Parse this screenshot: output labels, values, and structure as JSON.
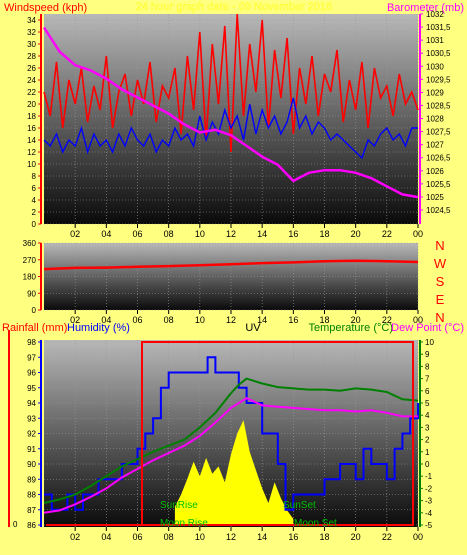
{
  "colors": {
    "background": "#ffff80",
    "wind": "#ff0000",
    "gust": "#0000ff",
    "barometer": "#ff00ff",
    "rain_axis": "#ff0000",
    "humidity_axis": "#0000ff",
    "temperature": "#008000",
    "dewpoint": "#ff00ff",
    "uv": "#ffff00",
    "sun": "#00c000"
  },
  "header": {
    "wind_label": "Windspeed (kph)",
    "title": "24 hour graph date - 09 November 2016",
    "baro_label": "Barometer (mb)"
  },
  "labels": {
    "rain": "Rainfall (mm)",
    "humidity": "Humidity (%)",
    "uv": "UV",
    "temperature": "Temperature (°C)",
    "dewpoint": "Dew Point (°C)",
    "sunrise": "SunRise",
    "sunset": "SunSet",
    "moonrise": "Moon Rise",
    "moonset": "Moon Set"
  },
  "chart_data": [
    {
      "type": "line",
      "x_ticks": [
        "02",
        "04",
        "06",
        "08",
        "10",
        "12",
        "14",
        "16",
        "18",
        "20",
        "22",
        "00"
      ],
      "y_left": {
        "label": "Windspeed (kph)",
        "ticks": [
          0,
          2,
          4,
          6,
          8,
          10,
          12,
          14,
          16,
          18,
          20,
          22,
          24,
          26,
          28,
          30,
          32,
          34
        ],
        "range": [
          0,
          35
        ]
      },
      "y_right": {
        "label": "Barometer (mb)",
        "ticks": [
          "1024,5",
          "1025",
          "1025,5",
          "1026",
          "1026,5",
          "1027",
          "1027,5",
          "1028",
          "1028,5",
          "1029",
          "1029,5",
          "1030",
          "1030,5",
          "1031",
          "1031,5",
          "1032"
        ],
        "range": [
          1024.2,
          1032
        ]
      },
      "series": [
        {
          "name": "Windspeed (kph)",
          "axis": "left",
          "style": "wind",
          "x": [
            0,
            0.4,
            0.8,
            1.2,
            1.6,
            2,
            2.4,
            2.8,
            3.2,
            3.6,
            4,
            4.4,
            4.8,
            5.2,
            5.6,
            6,
            6.4,
            6.8,
            7.2,
            7.6,
            8,
            8.4,
            8.8,
            9.2,
            9.6,
            10,
            10.4,
            10.8,
            11.2,
            11.6,
            12,
            12.4,
            12.8,
            13.2,
            13.6,
            14,
            14.4,
            14.8,
            15.2,
            15.6,
            16,
            16.4,
            16.8,
            17.2,
            17.6,
            18,
            18.4,
            18.8,
            19.2,
            19.6,
            20,
            20.4,
            20.8,
            21.2,
            21.6,
            22,
            22.4,
            22.8,
            23.2,
            23.6,
            24
          ],
          "values": [
            22,
            18,
            27,
            16,
            24,
            20,
            26,
            17,
            23,
            19,
            28,
            16,
            22,
            25,
            18,
            24,
            20,
            27,
            17,
            23,
            21,
            26,
            15,
            28,
            19,
            32,
            14,
            30,
            20,
            33,
            12,
            35,
            18,
            30,
            22,
            34,
            16,
            29,
            21,
            31,
            15,
            26,
            20,
            28,
            18,
            25,
            22,
            29,
            17,
            24,
            19,
            27,
            16,
            26,
            21,
            23,
            18,
            25,
            20,
            22,
            19
          ]
        },
        {
          "name": "Gust",
          "axis": "left",
          "style": "gust",
          "x": [
            0,
            0.4,
            0.8,
            1.2,
            1.6,
            2,
            2.4,
            2.8,
            3.2,
            3.6,
            4,
            4.4,
            4.8,
            5.2,
            5.6,
            6,
            6.4,
            6.8,
            7.2,
            7.6,
            8,
            8.4,
            8.8,
            9.2,
            9.6,
            10,
            10.4,
            10.8,
            11.2,
            11.6,
            12,
            12.4,
            12.8,
            13.2,
            13.6,
            14,
            14.4,
            14.8,
            15.2,
            15.6,
            16,
            16.4,
            16.8,
            17.2,
            17.6,
            18,
            18.4,
            18.8,
            19.2,
            19.6,
            20,
            20.4,
            20.8,
            21.2,
            21.6,
            22,
            22.4,
            22.8,
            23.2,
            23.6,
            24
          ],
          "values": [
            14,
            13,
            15,
            12,
            14,
            13,
            16,
            12,
            15,
            13,
            14,
            12,
            15,
            13,
            16,
            14,
            13,
            15,
            12,
            14,
            13,
            16,
            14,
            15,
            13,
            18,
            14,
            17,
            15,
            19,
            16,
            18,
            14,
            20,
            15,
            19,
            16,
            18,
            15,
            17,
            21,
            16,
            18,
            15,
            17,
            16,
            14,
            15,
            14,
            13,
            12,
            11,
            14,
            13,
            15,
            16,
            14,
            15,
            13,
            16,
            16
          ]
        },
        {
          "name": "Barometer (mb)",
          "axis": "right",
          "style": "baro",
          "x": [
            0,
            1,
            2,
            3,
            4,
            5,
            6,
            7,
            8,
            9,
            10,
            11,
            12,
            13,
            14,
            15,
            16,
            17,
            18,
            19,
            20,
            21,
            22,
            23,
            24
          ],
          "values": [
            1031.5,
            1030.6,
            1030.1,
            1029.9,
            1029.6,
            1029.2,
            1028.9,
            1028.6,
            1028.3,
            1027.9,
            1027.6,
            1027.7,
            1027.5,
            1027.1,
            1026.7,
            1026.4,
            1025.8,
            1026.1,
            1026.2,
            1026.2,
            1026.1,
            1025.9,
            1025.6,
            1025.3,
            1025.2
          ]
        }
      ]
    },
    {
      "type": "line",
      "x_ticks": [
        "02",
        "04",
        "06",
        "08",
        "10",
        "12",
        "14",
        "16",
        "18",
        "20",
        "22",
        "00"
      ],
      "y_left": {
        "label": "",
        "ticks": [
          0,
          90,
          180,
          270,
          360
        ],
        "range": [
          0,
          360
        ]
      },
      "y_right": {
        "label": "",
        "ticks": [
          "N",
          "W",
          "S",
          "E",
          "N"
        ]
      },
      "series": [
        {
          "name": "Wind direction",
          "axis": "left",
          "style": "wind",
          "x": [
            0,
            2,
            4,
            6,
            8,
            10,
            12,
            14,
            16,
            18,
            20,
            22,
            24
          ],
          "values": [
            220,
            226,
            228,
            232,
            236,
            240,
            246,
            252,
            256,
            262,
            265,
            262,
            258
          ]
        }
      ]
    },
    {
      "type": "line",
      "x_ticks": [
        "02",
        "04",
        "06",
        "08",
        "10",
        "12",
        "14",
        "16",
        "18",
        "20",
        "22",
        "00"
      ],
      "y_left": {
        "label": "Rainfall (mm)",
        "ticks": [
          0
        ]
      },
      "y_humidity": {
        "label": "Humidity (%)",
        "ticks": [
          86,
          87,
          88,
          89,
          90,
          91,
          92,
          93,
          94,
          95,
          96,
          97,
          98
        ],
        "range": [
          86,
          98
        ]
      },
      "y_right": {
        "label": "Temperature (°C) / Dew Point (°C)",
        "ticks": [
          -5,
          -4,
          -3,
          -2,
          -1,
          0,
          1,
          2,
          3,
          4,
          5,
          6,
          7,
          8,
          9,
          10
        ],
        "range": [
          -5,
          10
        ]
      },
      "series": [
        {
          "name": "Humidity (%)",
          "axis": "humidity",
          "style": "humidity",
          "x": [
            0,
            0.5,
            1,
            1.5,
            2,
            2.5,
            3,
            3.5,
            4,
            5,
            6,
            6.5,
            7,
            7.5,
            8,
            9,
            10,
            10.5,
            11,
            12,
            12.5,
            13,
            14,
            15,
            15.5,
            16,
            17,
            18,
            19,
            20,
            20.5,
            21,
            22,
            22.5,
            23,
            23.5,
            24
          ],
          "values": [
            88,
            87,
            87,
            88,
            87,
            88,
            88,
            89,
            89,
            90,
            91,
            92,
            93,
            95,
            96,
            96,
            96,
            97,
            96,
            96,
            95,
            94,
            92,
            90,
            87,
            88,
            88,
            89,
            90,
            89,
            91,
            90,
            89,
            91,
            92,
            93,
            94
          ]
        },
        {
          "name": "Temperature (°C)",
          "axis": "right",
          "style": "temp",
          "x": [
            0,
            1,
            2,
            3,
            4,
            5,
            6,
            7,
            8,
            9,
            10,
            11,
            12,
            12.5,
            13,
            14,
            15,
            16,
            17,
            18,
            19,
            20,
            21,
            22,
            23,
            24
          ],
          "values": [
            -3.2,
            -2.9,
            -2.5,
            -1.8,
            -1.0,
            -0.2,
            0.4,
            1.0,
            1.5,
            2.0,
            3.0,
            4.2,
            5.8,
            6.5,
            7.0,
            6.6,
            6.3,
            6.2,
            6.1,
            6.1,
            6.0,
            6.2,
            6.1,
            5.9,
            5.3,
            5.2
          ]
        },
        {
          "name": "Dew Point (°C)",
          "axis": "right",
          "style": "dew",
          "x": [
            0,
            1,
            2,
            3,
            4,
            5,
            6,
            7,
            8,
            9,
            10,
            11,
            12,
            13,
            14,
            15,
            16,
            17,
            18,
            19,
            20,
            21,
            22,
            23,
            24
          ],
          "values": [
            -4.0,
            -3.8,
            -3.3,
            -2.7,
            -2.0,
            -1.1,
            -0.4,
            0.3,
            0.9,
            1.5,
            2.3,
            3.4,
            4.6,
            5.4,
            4.8,
            4.7,
            4.6,
            4.5,
            4.4,
            4.4,
            4.3,
            4.4,
            4.2,
            3.9,
            3.9
          ]
        },
        {
          "name": "UV",
          "axis": "right",
          "style": "uv",
          "x": [
            8.4,
            8.8,
            9.2,
            9.6,
            10,
            10.4,
            10.8,
            11.2,
            11.6,
            12,
            12.4,
            12.8,
            13.2,
            13.6,
            14,
            14.4,
            14.8,
            15.2,
            15.6,
            16
          ],
          "values": [
            -3.5,
            -2.5,
            -1.2,
            0.2,
            -1.0,
            0.5,
            -0.8,
            -0.2,
            -1.5,
            0.8,
            2.5,
            3.6,
            1.0,
            -0.5,
            -2.0,
            -3.2,
            -1.5,
            -2.8,
            -3.8,
            -4.5
          ]
        }
      ]
    }
  ]
}
